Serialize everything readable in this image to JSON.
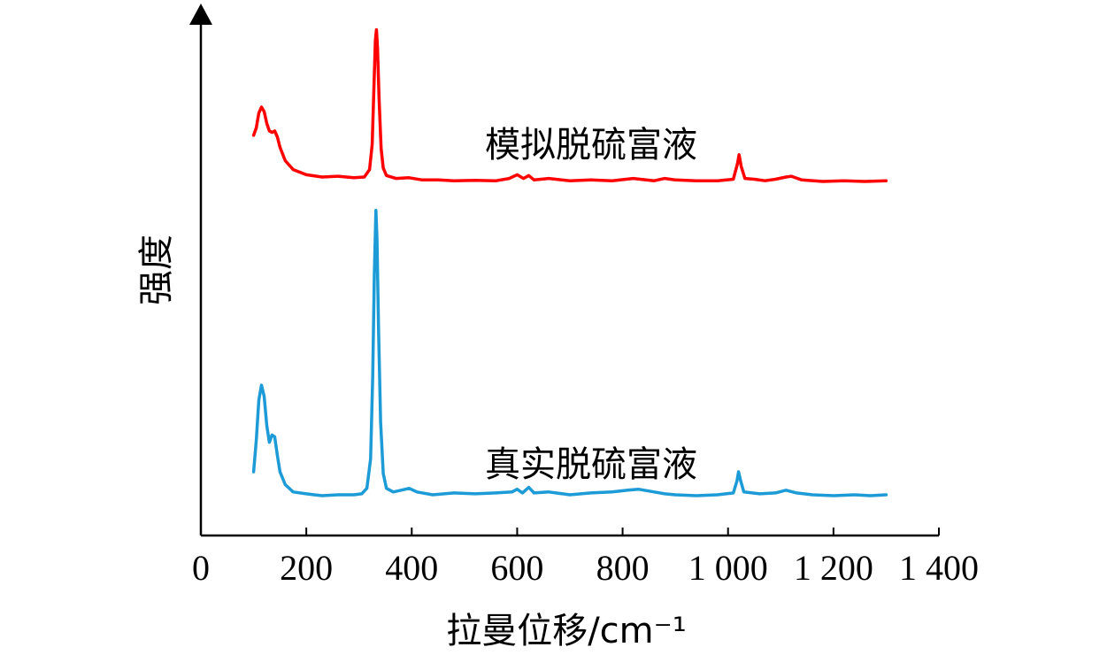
{
  "chart_data": {
    "type": "line",
    "xlabel": "拉曼位移/cm⁻¹",
    "ylabel": "强度",
    "xlim": [
      0,
      1400
    ],
    "x_ticks": [
      0,
      200,
      400,
      600,
      800,
      1000,
      1200,
      1400
    ],
    "x_tick_labels": [
      "0",
      "200",
      "400",
      "600",
      "800",
      "1 000",
      "1 200",
      "1 400"
    ],
    "y_ticks_shown": false,
    "grid": false,
    "legend": "none (series labeled inline)",
    "series": [
      {
        "name": "模拟脱硫富液",
        "color": "#ff0000",
        "points": [
          [
            100,
            3.1
          ],
          [
            105,
            3.6
          ],
          [
            110,
            4.6
          ],
          [
            115,
            5.0
          ],
          [
            120,
            4.7
          ],
          [
            125,
            3.9
          ],
          [
            130,
            3.4
          ],
          [
            135,
            3.3
          ],
          [
            140,
            3.4
          ],
          [
            145,
            3.0
          ],
          [
            150,
            2.3
          ],
          [
            160,
            1.4
          ],
          [
            175,
            0.8
          ],
          [
            200,
            0.45
          ],
          [
            230,
            0.3
          ],
          [
            260,
            0.35
          ],
          [
            290,
            0.25
          ],
          [
            310,
            0.3
          ],
          [
            320,
            0.8
          ],
          [
            325,
            2.5
          ],
          [
            328,
            6.0
          ],
          [
            331,
            9.5
          ],
          [
            333,
            10.2
          ],
          [
            335,
            9.0
          ],
          [
            338,
            5.5
          ],
          [
            342,
            2.2
          ],
          [
            346,
            0.9
          ],
          [
            352,
            0.4
          ],
          [
            370,
            0.2
          ],
          [
            395,
            0.25
          ],
          [
            420,
            0.1
          ],
          [
            450,
            0.1
          ],
          [
            480,
            0.05
          ],
          [
            520,
            0.08
          ],
          [
            560,
            0.05
          ],
          [
            585,
            0.2
          ],
          [
            600,
            0.45
          ],
          [
            612,
            0.2
          ],
          [
            622,
            0.4
          ],
          [
            632,
            0.1
          ],
          [
            660,
            0.2
          ],
          [
            700,
            0.05
          ],
          [
            740,
            0.1
          ],
          [
            780,
            0.05
          ],
          [
            820,
            0.2
          ],
          [
            860,
            0.05
          ],
          [
            880,
            0.2
          ],
          [
            900,
            0.1
          ],
          [
            940,
            0.05
          ],
          [
            980,
            0.05
          ],
          [
            1010,
            0.15
          ],
          [
            1018,
            1.2
          ],
          [
            1021,
            1.8
          ],
          [
            1025,
            1.0
          ],
          [
            1032,
            0.2
          ],
          [
            1050,
            0.15
          ],
          [
            1070,
            0.05
          ],
          [
            1090,
            0.15
          ],
          [
            1110,
            0.3
          ],
          [
            1120,
            0.35
          ],
          [
            1140,
            0.1
          ],
          [
            1180,
            0.0
          ],
          [
            1220,
            0.05
          ],
          [
            1260,
            0.0
          ],
          [
            1300,
            0.05
          ]
        ]
      },
      {
        "name": "真实脱硫富液",
        "color": "#1c9bd6",
        "points": [
          [
            100,
            1.3
          ],
          [
            105,
            3.0
          ],
          [
            110,
            5.2
          ],
          [
            115,
            6.0
          ],
          [
            120,
            5.4
          ],
          [
            125,
            3.8
          ],
          [
            130,
            2.9
          ],
          [
            135,
            3.3
          ],
          [
            140,
            3.2
          ],
          [
            145,
            2.2
          ],
          [
            150,
            1.3
          ],
          [
            160,
            0.6
          ],
          [
            175,
            0.2
          ],
          [
            200,
            0.1
          ],
          [
            215,
            0.05
          ],
          [
            230,
            0.0
          ],
          [
            260,
            0.05
          ],
          [
            290,
            0.05
          ],
          [
            305,
            0.1
          ],
          [
            315,
            0.4
          ],
          [
            322,
            2.0
          ],
          [
            326,
            6.5
          ],
          [
            329,
            12.0
          ],
          [
            332,
            15.5
          ],
          [
            334,
            14.0
          ],
          [
            337,
            9.0
          ],
          [
            341,
            4.0
          ],
          [
            346,
            1.2
          ],
          [
            352,
            0.4
          ],
          [
            365,
            0.2
          ],
          [
            380,
            0.3
          ],
          [
            395,
            0.4
          ],
          [
            410,
            0.2
          ],
          [
            440,
            0.05
          ],
          [
            480,
            0.15
          ],
          [
            520,
            0.1
          ],
          [
            560,
            0.15
          ],
          [
            590,
            0.2
          ],
          [
            600,
            0.35
          ],
          [
            610,
            0.15
          ],
          [
            622,
            0.45
          ],
          [
            632,
            0.15
          ],
          [
            660,
            0.2
          ],
          [
            700,
            0.05
          ],
          [
            740,
            0.15
          ],
          [
            780,
            0.2
          ],
          [
            810,
            0.3
          ],
          [
            830,
            0.35
          ],
          [
            860,
            0.2
          ],
          [
            880,
            0.1
          ],
          [
            900,
            0.05
          ],
          [
            940,
            0.0
          ],
          [
            980,
            0.05
          ],
          [
            1010,
            0.15
          ],
          [
            1017,
            0.8
          ],
          [
            1020,
            1.3
          ],
          [
            1024,
            0.8
          ],
          [
            1030,
            0.2
          ],
          [
            1060,
            0.1
          ],
          [
            1090,
            0.15
          ],
          [
            1110,
            0.3
          ],
          [
            1130,
            0.15
          ],
          [
            1160,
            0.05
          ],
          [
            1200,
            0.0
          ],
          [
            1240,
            0.05
          ],
          [
            1270,
            0.0
          ],
          [
            1300,
            0.05
          ]
        ]
      }
    ]
  }
}
